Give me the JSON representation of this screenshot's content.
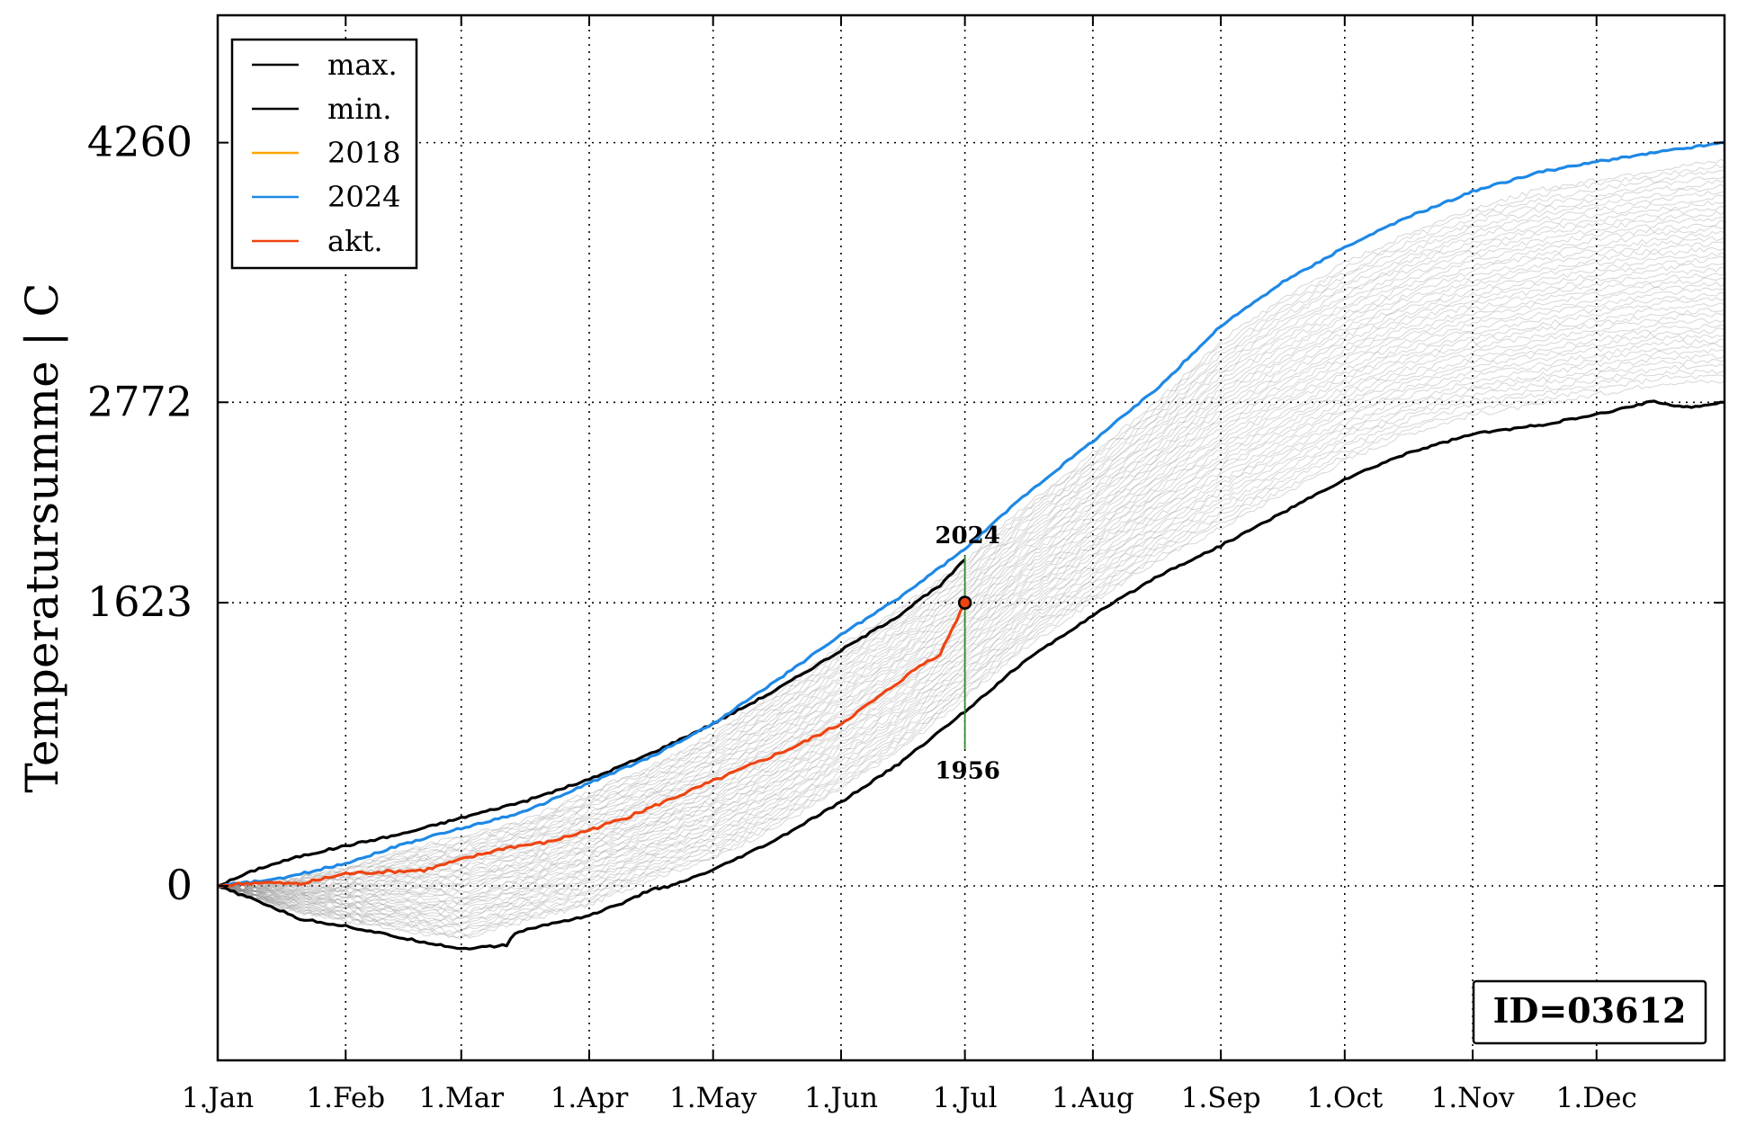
{
  "chart_data": {
    "type": "line",
    "title": "",
    "ylabel": "Temperatursumme | C",
    "xlabel": "",
    "ylim": [
      -1000,
      4990
    ],
    "xlim": [
      0,
      365
    ],
    "x_ticks": [
      {
        "label": "1.Jan",
        "day": 0
      },
      {
        "label": "1.Feb",
        "day": 31
      },
      {
        "label": "1.Mar",
        "day": 59
      },
      {
        "label": "1.Apr",
        "day": 90
      },
      {
        "label": "1.May",
        "day": 120
      },
      {
        "label": "1.Jun",
        "day": 151
      },
      {
        "label": "1.Jul",
        "day": 181
      },
      {
        "label": "1.Aug",
        "day": 212
      },
      {
        "label": "1.Sep",
        "day": 243
      },
      {
        "label": "1.Oct",
        "day": 273
      },
      {
        "label": "1.Nov",
        "day": 304
      },
      {
        "label": "1.Dec",
        "day": 334
      }
    ],
    "y_ticks": [
      0,
      1623,
      2772,
      4260
    ],
    "grid": "dotted",
    "legend_position": "top-left",
    "series": [
      {
        "name": "max.",
        "color": "#000000",
        "x": [
          0,
          10,
          20,
          31,
          45,
          59,
          75,
          90,
          105,
          120,
          135,
          151,
          165,
          170,
          175,
          181
        ],
        "y": [
          0,
          100,
          170,
          230,
          300,
          390,
          490,
          610,
          760,
          930,
          1120,
          1350,
          1550,
          1640,
          1720,
          1870
        ]
      },
      {
        "name": "min.",
        "color": "#000000",
        "x": [
          0,
          10,
          20,
          31,
          45,
          59,
          65,
          70,
          72,
          80,
          90,
          100,
          105,
          110,
          120,
          135,
          151,
          165,
          181,
          195,
          212,
          228,
          243,
          258,
          273,
          288,
          304,
          320,
          334,
          348,
          355,
          365
        ],
        "y": [
          0,
          -90,
          -190,
          -230,
          -300,
          -360,
          -350,
          -340,
          -270,
          -220,
          -170,
          -80,
          -20,
          0,
          90,
          260,
          480,
          700,
          1000,
          1280,
          1550,
          1780,
          1950,
          2140,
          2330,
          2480,
          2590,
          2640,
          2700,
          2780,
          2740,
          2772
        ]
      },
      {
        "name": "2018",
        "color": "#FFA500",
        "x": [],
        "y": []
      },
      {
        "name": "2024",
        "color": "#1E88E5",
        "x": [
          0,
          15,
          31,
          45,
          59,
          75,
          90,
          105,
          120,
          135,
          151,
          165,
          181,
          195,
          212,
          228,
          243,
          258,
          273,
          288,
          304,
          320,
          334,
          350,
          365
        ],
        "y": [
          0,
          40,
          130,
          240,
          330,
          430,
          590,
          740,
          930,
          1170,
          1440,
          1650,
          1930,
          2230,
          2550,
          2860,
          3210,
          3460,
          3660,
          3830,
          3980,
          4090,
          4150,
          4210,
          4260
        ]
      },
      {
        "name": "akt.",
        "color": "#EE4411",
        "x": [
          0,
          10,
          20,
          31,
          40,
          50,
          59,
          70,
          80,
          90,
          100,
          110,
          120,
          130,
          140,
          151,
          160,
          170,
          175,
          181
        ],
        "y": [
          0,
          20,
          10,
          70,
          80,
          90,
          150,
          220,
          250,
          320,
          400,
          500,
          600,
          700,
          800,
          930,
          1080,
          1260,
          1330,
          1623
        ]
      }
    ],
    "annotations": [
      {
        "text": "2024",
        "x": 181,
        "y": 1893
      },
      {
        "text": "1956",
        "x": 181,
        "y": 785
      }
    ],
    "marker": {
      "x": 181,
      "y": 1623
    },
    "id_label": "ID=03612"
  },
  "colors": {
    "envelope": "#888888",
    "today_line": "#2E8B2E",
    "marker_fill": "#EE4411"
  }
}
